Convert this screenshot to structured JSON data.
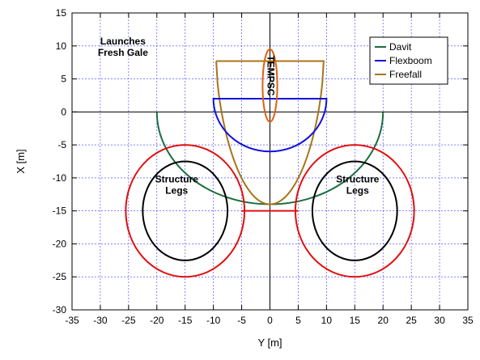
{
  "chart_data": {
    "type": "line",
    "title": "",
    "xlabel": "Y [m]",
    "ylabel": "X [m]",
    "xlim": [
      -35,
      35
    ],
    "ylim": [
      -30,
      15
    ],
    "x_ticks": [
      -35,
      -30,
      -25,
      -20,
      -15,
      -10,
      -5,
      0,
      5,
      10,
      15,
      20,
      25,
      30,
      35
    ],
    "y_ticks": [
      -30,
      -25,
      -20,
      -15,
      -10,
      -5,
      0,
      5,
      10,
      15
    ],
    "grid": true,
    "legend_position": "top-right",
    "legend": [
      {
        "name": "Davit",
        "color": "#1a6e3c"
      },
      {
        "name": "Flexboom",
        "color": "#1010e0"
      },
      {
        "name": "Freefall",
        "color": "#a8741a"
      }
    ],
    "annotations": [
      {
        "lines": [
          "Launches",
          "Fresh Gale"
        ],
        "x": -26,
        "y": 10.2
      },
      {
        "lines": [
          "Structure",
          "Legs"
        ],
        "x": -16.5,
        "y": -10.7
      },
      {
        "lines": [
          "Structure",
          "Legs"
        ],
        "x": 15.5,
        "y": -10.7
      },
      {
        "lines": [
          "TEMPSC"
        ],
        "x": 0,
        "y": 5.5,
        "rotated": true
      }
    ],
    "series": [
      {
        "name": "Davit",
        "color": "#1a6e3c",
        "shape": "semi-ellipse",
        "center": [
          0,
          0
        ],
        "rx": 20,
        "ry": 14
      },
      {
        "name": "Flexboom",
        "color": "#1010e0",
        "shape": "box-bottom-arc",
        "y_top": 2,
        "x_left": -10,
        "x_right": 10,
        "y_bottom": -6
      },
      {
        "name": "Freefall",
        "color": "#a8741a",
        "shape": "u-curve",
        "y_top": 7.7,
        "x_left": -9.5,
        "x_right": 9.5,
        "y_bottom": -14
      },
      {
        "name": "TEMPSC",
        "color": "#e06010",
        "shape": "capsule",
        "center": [
          0,
          4
        ],
        "rx": 1.3,
        "ry": 5.5
      },
      {
        "name": "Leg outer",
        "color": "#e01010",
        "shape": "ellipse",
        "centers": [
          [
            -15,
            -15
          ],
          [
            15,
            -15
          ]
        ],
        "rx": 10.5,
        "ry": 10
      },
      {
        "name": "Leg inner",
        "color": "#000000",
        "shape": "ellipse",
        "centers": [
          [
            -15,
            -15
          ],
          [
            15,
            -15
          ]
        ],
        "rx": 7.5,
        "ry": 7.5
      },
      {
        "name": "Leg connector",
        "color": "#e01010",
        "shape": "line",
        "points": [
          [
            -5,
            -15
          ],
          [
            5,
            -15
          ]
        ]
      }
    ]
  }
}
